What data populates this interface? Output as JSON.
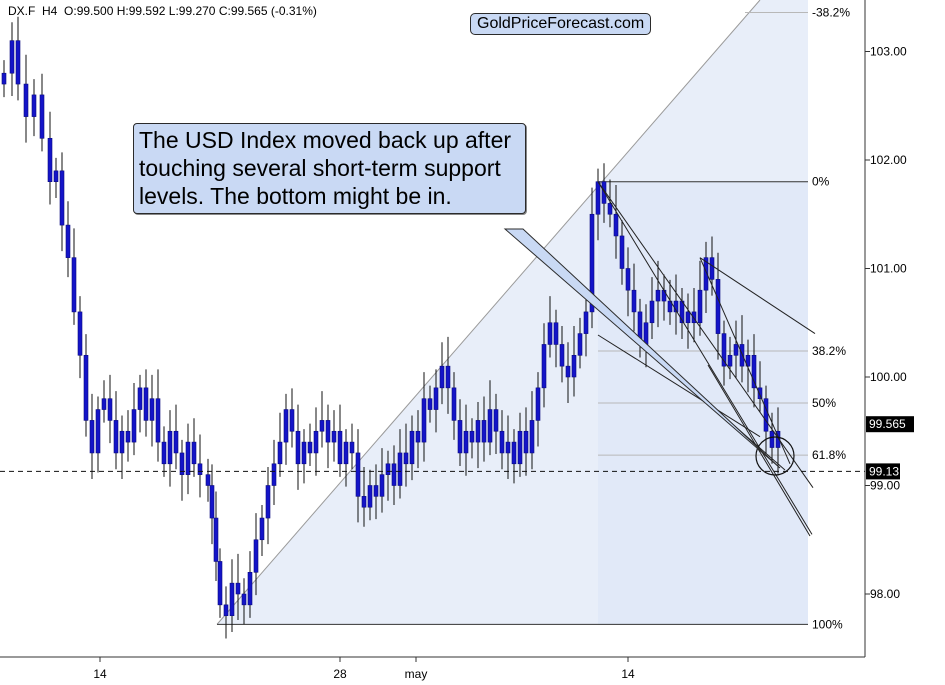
{
  "header": {
    "symbol": "DX.F",
    "timeframe": "H4",
    "ohlc_text": "O:99.500  H:99.592  L:99.270  C:99.565  (-0.31%)"
  },
  "brand": "GoldPriceForecast.com",
  "annotation": "The USD Index moved back up after touching several short-term support levels. The bottom might be in.",
  "colors": {
    "candle_body": "#1414c8",
    "fib_fill": "#dbe6f8",
    "annotation_bg": "#c9d9f4",
    "price_tag_bg": "#000000",
    "line": "#2a2a2a"
  },
  "chart_data": {
    "type": "candlestick",
    "y_axis": {
      "ticks": [
        98.0,
        99.0,
        100.0,
        101.0,
        102.0,
        103.0
      ],
      "tick_labels": [
        "98.00",
        "99.00",
        "100.00",
        "101.00",
        "102.00",
        "103.00"
      ],
      "range": [
        97.45,
        103.65
      ],
      "position": "right"
    },
    "x_axis": {
      "tick_labels": [
        "14",
        "28",
        "may",
        "14"
      ]
    },
    "last_price": {
      "value": 99.565,
      "label": "99.565"
    },
    "support_line": {
      "value": 99.13,
      "label": "99.13",
      "style": "dashed"
    },
    "fibonacci": {
      "swing_high": 101.8,
      "swing_low": 97.72,
      "levels": [
        {
          "label": "-38.2%",
          "value": 103.36
        },
        {
          "label": "0%",
          "value": 101.8
        },
        {
          "label": "38.2%",
          "value": 100.24
        },
        {
          "label": "50%",
          "value": 99.76
        },
        {
          "label": "61.8%",
          "value": 99.28
        },
        {
          "label": "100%",
          "value": 97.72
        }
      ]
    },
    "price_path": [
      [
        0,
        102.8
      ],
      [
        8,
        103.1
      ],
      [
        14,
        102.7
      ],
      [
        22,
        102.4
      ],
      [
        30,
        102.6
      ],
      [
        38,
        102.2
      ],
      [
        46,
        101.8
      ],
      [
        52,
        101.9
      ],
      [
        58,
        101.4
      ],
      [
        64,
        101.1
      ],
      [
        70,
        100.6
      ],
      [
        76,
        100.2
      ],
      [
        82,
        99.6
      ],
      [
        88,
        99.3
      ],
      [
        94,
        99.7
      ],
      [
        100,
        99.8
      ],
      [
        106,
        99.6
      ],
      [
        112,
        99.3
      ],
      [
        118,
        99.5
      ],
      [
        124,
        99.4
      ],
      [
        130,
        99.7
      ],
      [
        136,
        99.9
      ],
      [
        142,
        99.6
      ],
      [
        148,
        99.8
      ],
      [
        154,
        99.4
      ],
      [
        160,
        99.2
      ],
      [
        166,
        99.5
      ],
      [
        172,
        99.3
      ],
      [
        178,
        99.1
      ],
      [
        184,
        99.4
      ],
      [
        190,
        99.2
      ],
      [
        196,
        99.1
      ],
      [
        204,
        99.0
      ],
      [
        208,
        98.7
      ],
      [
        212,
        98.3
      ],
      [
        216,
        97.9
      ],
      [
        222,
        97.8
      ],
      [
        228,
        98.1
      ],
      [
        234,
        98.0
      ],
      [
        240,
        97.9
      ],
      [
        246,
        98.2
      ],
      [
        252,
        98.5
      ],
      [
        258,
        98.7
      ],
      [
        264,
        99.0
      ],
      [
        270,
        99.2
      ],
      [
        276,
        99.4
      ],
      [
        282,
        99.7
      ],
      [
        288,
        99.5
      ],
      [
        294,
        99.2
      ],
      [
        300,
        99.4
      ],
      [
        306,
        99.3
      ],
      [
        312,
        99.5
      ],
      [
        318,
        99.6
      ],
      [
        324,
        99.4
      ],
      [
        330,
        99.5
      ],
      [
        336,
        99.2
      ],
      [
        342,
        99.4
      ],
      [
        348,
        99.3
      ],
      [
        354,
        98.9
      ],
      [
        360,
        98.8
      ],
      [
        366,
        99.0
      ],
      [
        372,
        98.9
      ],
      [
        378,
        99.1
      ],
      [
        384,
        99.2
      ],
      [
        390,
        99.0
      ],
      [
        396,
        99.3
      ],
      [
        402,
        99.2
      ],
      [
        408,
        99.5
      ],
      [
        414,
        99.4
      ],
      [
        420,
        99.8
      ],
      [
        426,
        99.7
      ],
      [
        432,
        99.9
      ],
      [
        438,
        100.1
      ],
      [
        444,
        99.9
      ],
      [
        450,
        99.6
      ],
      [
        456,
        99.3
      ],
      [
        462,
        99.5
      ],
      [
        468,
        99.4
      ],
      [
        474,
        99.6
      ],
      [
        480,
        99.4
      ],
      [
        486,
        99.7
      ],
      [
        492,
        99.5
      ],
      [
        498,
        99.3
      ],
      [
        504,
        99.4
      ],
      [
        510,
        99.2
      ],
      [
        516,
        99.5
      ],
      [
        522,
        99.3
      ],
      [
        528,
        99.6
      ],
      [
        534,
        99.9
      ],
      [
        540,
        100.3
      ],
      [
        546,
        100.5
      ],
      [
        552,
        100.3
      ],
      [
        558,
        100.1
      ],
      [
        564,
        100.0
      ],
      [
        570,
        100.2
      ],
      [
        576,
        100.4
      ],
      [
        582,
        100.6
      ],
      [
        588,
        101.5
      ],
      [
        594,
        101.8
      ],
      [
        600,
        101.6
      ],
      [
        606,
        101.5
      ],
      [
        612,
        101.3
      ],
      [
        618,
        101.0
      ],
      [
        624,
        100.8
      ],
      [
        630,
        100.6
      ],
      [
        636,
        100.3
      ],
      [
        642,
        100.5
      ],
      [
        648,
        100.7
      ],
      [
        654,
        100.8
      ],
      [
        660,
        100.7
      ],
      [
        666,
        100.6
      ],
      [
        672,
        100.7
      ],
      [
        678,
        100.5
      ],
      [
        684,
        100.6
      ],
      [
        690,
        100.5
      ],
      [
        696,
        100.8
      ],
      [
        702,
        101.1
      ],
      [
        708,
        100.9
      ],
      [
        714,
        100.4
      ],
      [
        720,
        100.1
      ],
      [
        726,
        100.2
      ],
      [
        732,
        100.3
      ],
      [
        738,
        100.1
      ],
      [
        744,
        100.2
      ],
      [
        750,
        99.9
      ],
      [
        756,
        99.8
      ],
      [
        762,
        99.5
      ],
      [
        768,
        99.35
      ],
      [
        774,
        99.5
      ]
    ]
  }
}
